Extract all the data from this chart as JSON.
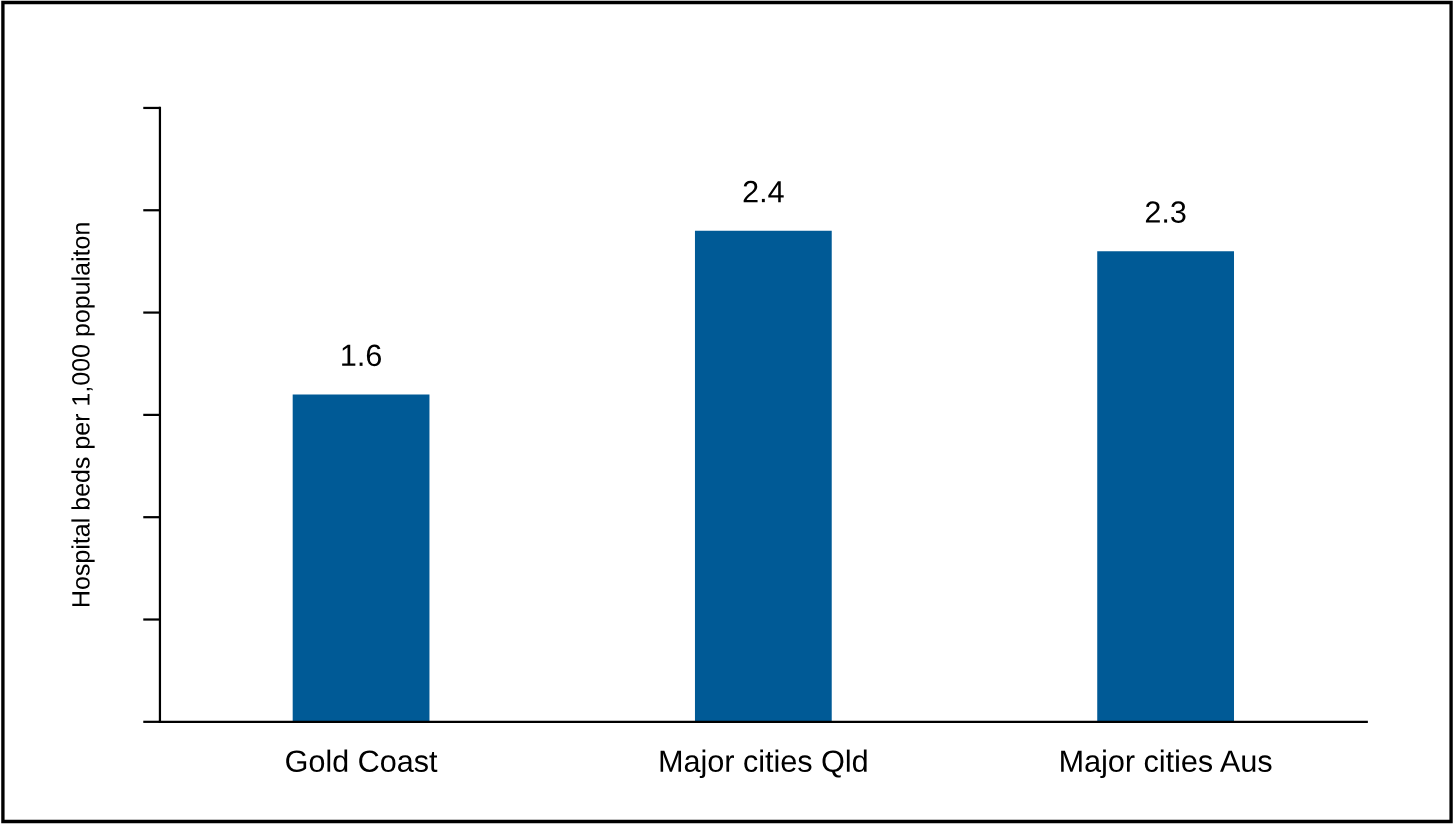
{
  "chart_data": {
    "type": "bar",
    "ylabel": "Hospital beds per 1,000 populaiton",
    "categories": [
      "Gold Coast",
      "Major cities Qld",
      "Major cities Aus"
    ],
    "values": [
      1.6,
      2.4,
      2.3
    ],
    "color": "#005a96",
    "ylim": [
      0,
      3
    ],
    "yticks": [
      {
        "value": 0,
        "label": null
      },
      {
        "value": 0.5,
        "label": null
      },
      {
        "value": 1,
        "label": null
      },
      {
        "value": 1.5,
        "label": null
      },
      {
        "value": 2,
        "label": null
      },
      {
        "value": 2.5,
        "label": null
      },
      {
        "value": 3,
        "label": null
      }
    ],
    "data_labels": true,
    "grid": false
  }
}
